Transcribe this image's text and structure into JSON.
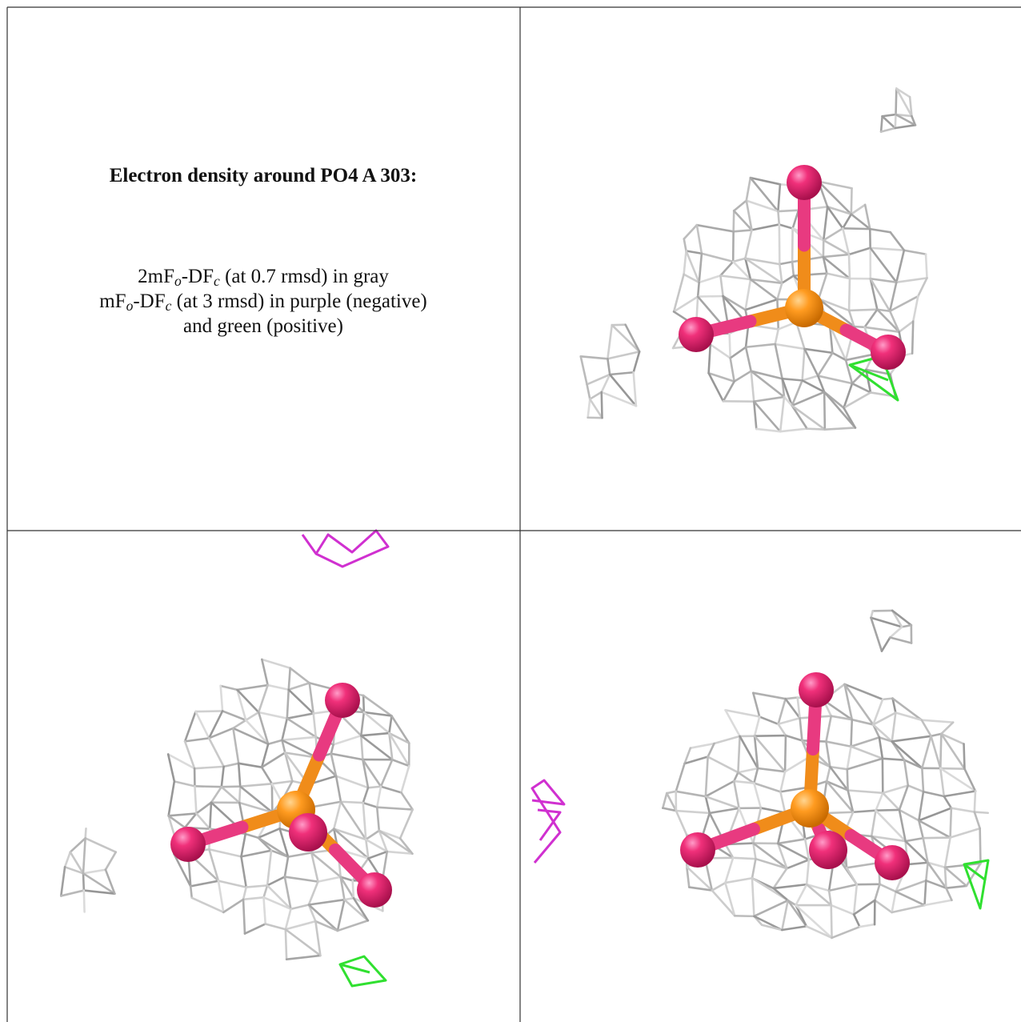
{
  "legend": {
    "title": "Electron density around PO4 A 303:",
    "lines": [
      [
        "2mF",
        "o",
        "-DF",
        "c",
        " (at 0.7 rmsd) in gray"
      ],
      [
        "mF",
        "o",
        "-DF",
        "c",
        " (at 3 rmsd) in purple (negative)"
      ],
      [
        "and green (positive)"
      ]
    ]
  }
}
